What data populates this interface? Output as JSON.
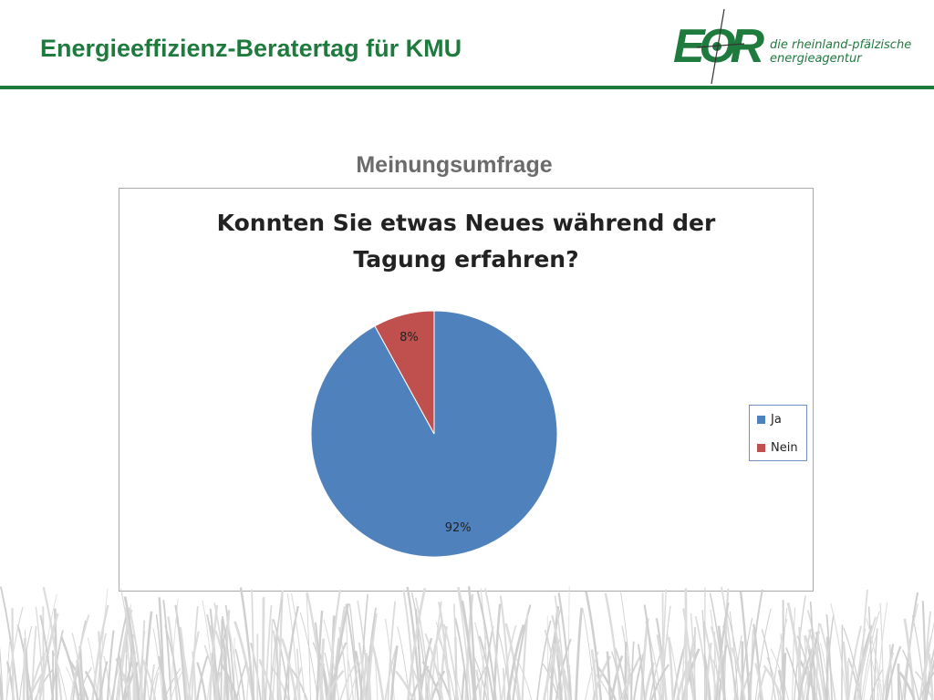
{
  "slide": {
    "title": "Energieeffizienz-Beratertag für KMU",
    "subtitle": "Meinungsumfrage"
  },
  "logo": {
    "letters": "EOR",
    "line1": "die rheinland-pfälzische",
    "line2": "energieagentur",
    "color": "#1f7a3e"
  },
  "chart_data": {
    "type": "pie",
    "title_line1": "Konnten Sie etwas Neues während der",
    "title_line2": "Tagung erfahren?",
    "categories": [
      "Ja",
      "Nein"
    ],
    "values": [
      92,
      8
    ],
    "labels": [
      "92%",
      "8%"
    ],
    "colors": [
      "#4f81bd",
      "#c0504d"
    ],
    "legend_position": "right"
  }
}
